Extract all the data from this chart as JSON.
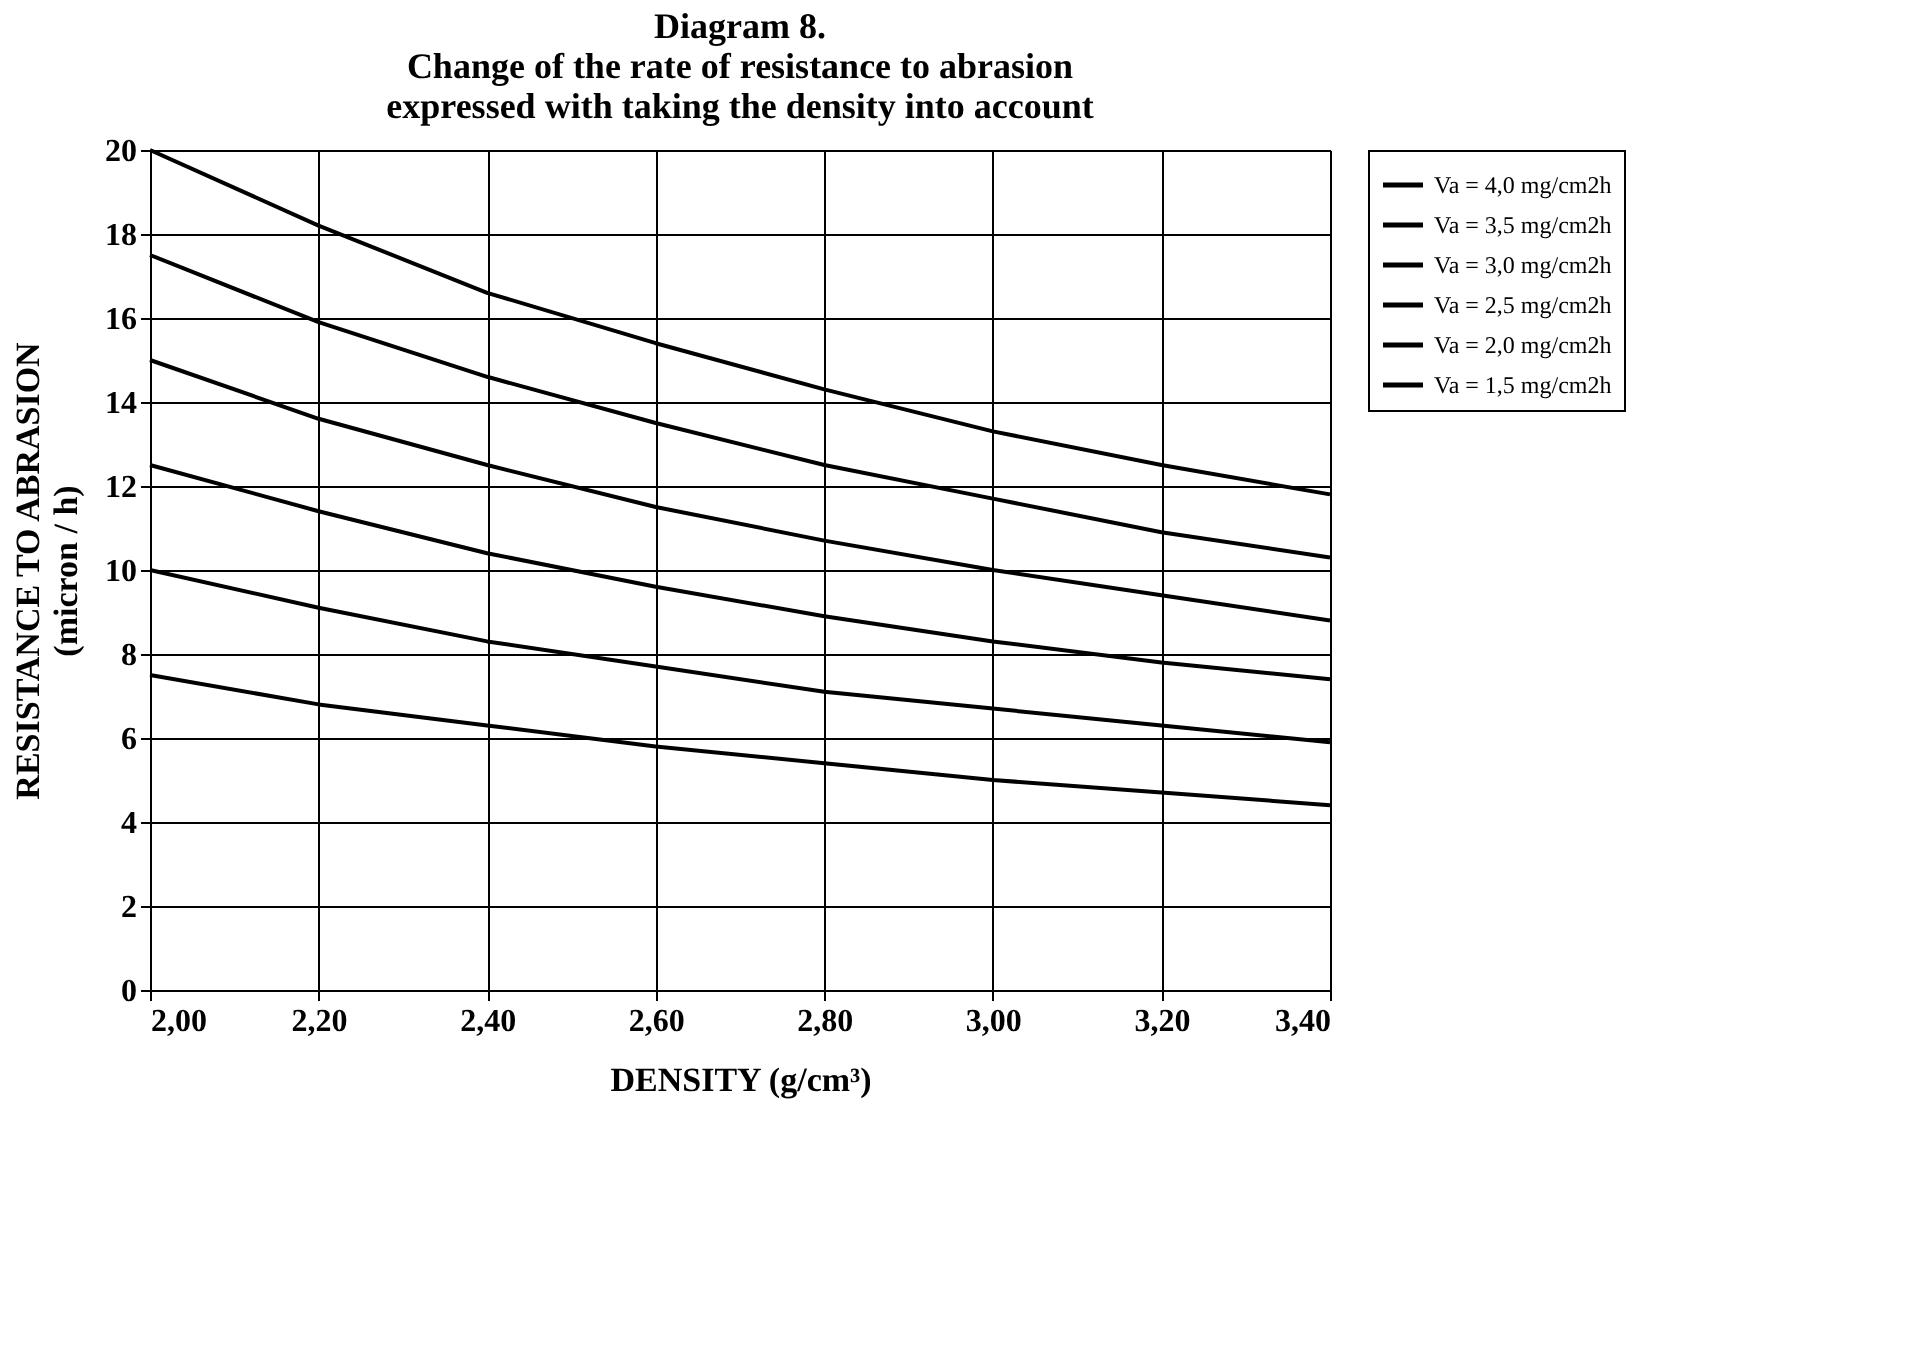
{
  "chart_data": {
    "type": "line",
    "title": "Diagram 8.\nChange of the rate of resistance to abrasion\nexpressed with taking the density into account",
    "xlabel": "DENSITY (g/cm³)",
    "ylabel": "RESISTANCE TO ABRASION\n(micron / h)",
    "x": [
      2.0,
      2.2,
      2.4,
      2.6,
      2.8,
      3.0,
      3.2,
      3.4
    ],
    "series": [
      {
        "name": "Va = 4,0 mg/cm2h",
        "color": "#000000",
        "values": [
          20,
          18.2,
          16.6,
          15.4,
          14.3,
          13.3,
          12.5,
          11.8
        ]
      },
      {
        "name": "Va = 3,5 mg/cm2h",
        "color": "#000000",
        "values": [
          17.5,
          15.9,
          14.6,
          13.5,
          12.5,
          11.7,
          10.9,
          10.3
        ]
      },
      {
        "name": "Va = 3,0 mg/cm2h",
        "color": "#000000",
        "values": [
          15,
          13.6,
          12.5,
          11.5,
          10.7,
          10.0,
          9.4,
          8.8
        ]
      },
      {
        "name": "Va = 2,5 mg/cm2h",
        "color": "#000000",
        "values": [
          12.5,
          11.4,
          10.4,
          9.6,
          8.9,
          8.3,
          7.8,
          7.4
        ]
      },
      {
        "name": "Va = 2,0 mg/cm2h",
        "color": "#000000",
        "values": [
          10,
          9.1,
          8.3,
          7.7,
          7.1,
          6.7,
          6.3,
          5.9
        ]
      },
      {
        "name": "Va = 1,5 mg/cm2h",
        "color": "#000000",
        "values": [
          7.5,
          6.8,
          6.3,
          5.8,
          5.4,
          5.0,
          4.7,
          4.4
        ]
      }
    ],
    "xlim": [
      2.0,
      3.4
    ],
    "xticks": [
      {
        "value": 2.0,
        "label": "2,00"
      },
      {
        "value": 2.2,
        "label": "2,20"
      },
      {
        "value": 2.4,
        "label": "2,40"
      },
      {
        "value": 2.6,
        "label": "2,60"
      },
      {
        "value": 2.8,
        "label": "2,80"
      },
      {
        "value": 3.0,
        "label": "3,00"
      },
      {
        "value": 3.2,
        "label": "3,20"
      },
      {
        "value": 3.4,
        "label": "3,40"
      }
    ],
    "ylim": [
      0,
      20
    ],
    "yticks": [
      0,
      2,
      4,
      6,
      8,
      10,
      12,
      14,
      16,
      18,
      20
    ],
    "grid": true,
    "legend": "right",
    "marker": "none",
    "line_style": "solid"
  }
}
